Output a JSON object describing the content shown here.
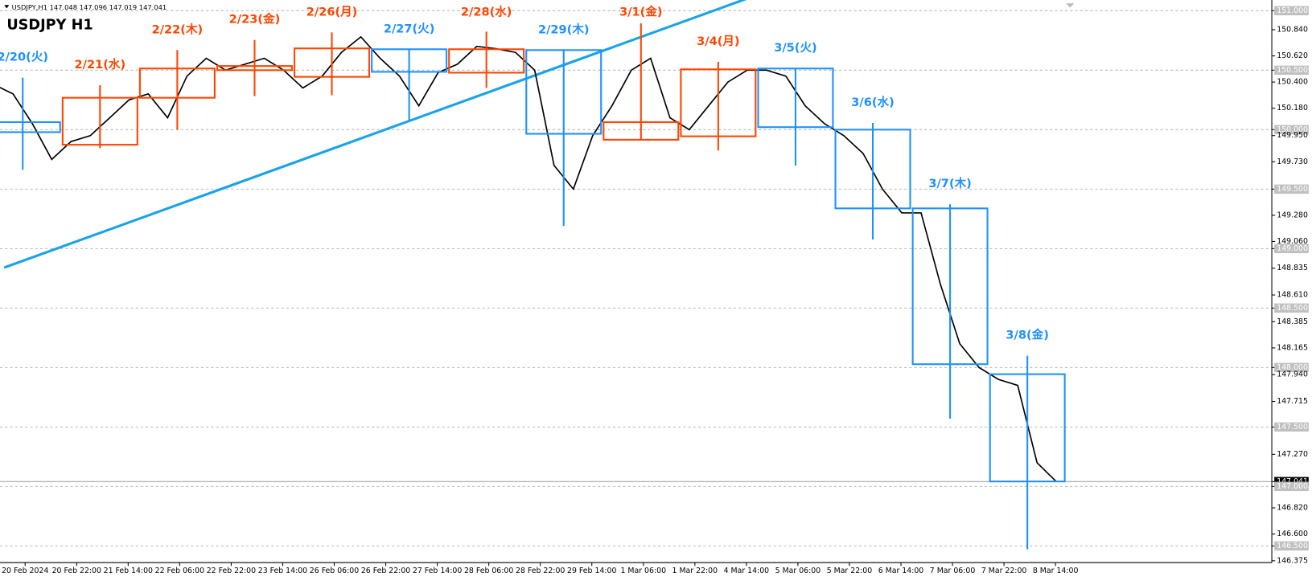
{
  "chart_data": {
    "type": "candlestick",
    "title": "USDJPY H1",
    "subtitle": "USDJPY,H1 147.048 147.096 147.019 147.041",
    "categories": [
      "2/20(火)",
      "2/21(水)",
      "2/22(木)",
      "2/23(金)",
      "2/26(月)",
      "2/27(火)",
      "2/28(水)",
      "2/29(木)",
      "3/1(金)",
      "3/4(月)",
      "3/5(火)",
      "3/6(水)",
      "3/7(木)",
      "3/8(金)"
    ],
    "colors": [
      "#1e90ff",
      "#ff4500",
      "#ff4500",
      "#ff4500",
      "#ff4500",
      "#1e90ff",
      "#ff4500",
      "#1e90ff",
      "#ff4500",
      "#ff4500",
      "#1e90ff",
      "#1e90ff",
      "#1e90ff",
      "#1e90ff"
    ],
    "open": [
      150.063,
      149.873,
      150.268,
      150.5,
      150.444,
      150.676,
      150.479,
      150.669,
      149.915,
      149.944,
      150.514,
      150.0,
      149.338,
      147.944
    ],
    "high": [
      150.437,
      150.373,
      150.669,
      150.754,
      150.817,
      150.676,
      150.824,
      150.669,
      150.894,
      150.57,
      150.514,
      150.056,
      149.373,
      148.099
    ],
    "low": [
      149.662,
      149.845,
      150.0,
      150.282,
      150.289,
      150.07,
      150.352,
      149.19,
      149.915,
      149.824,
      149.697,
      149.077,
      147.57,
      146.472
    ],
    "close": [
      149.979,
      150.268,
      150.514,
      150.535,
      150.683,
      150.486,
      150.676,
      149.965,
      150.063,
      150.507,
      150.021,
      149.338,
      148.028,
      147.042
    ],
    "price_path": [
      150.38,
      150.3,
      150.05,
      149.75,
      149.9,
      149.95,
      150.1,
      150.25,
      150.3,
      150.1,
      150.45,
      150.6,
      150.5,
      150.55,
      150.6,
      150.5,
      150.35,
      150.45,
      150.65,
      150.78,
      150.6,
      150.45,
      150.2,
      150.48,
      150.55,
      150.7,
      150.68,
      150.65,
      150.5,
      149.7,
      149.5,
      149.95,
      150.2,
      150.5,
      150.6,
      150.1,
      150.0,
      150.2,
      150.4,
      150.5,
      150.5,
      150.45,
      150.2,
      150.05,
      149.95,
      149.8,
      149.5,
      149.3,
      149.3,
      148.7,
      148.2,
      148.0,
      147.9,
      147.85,
      147.2,
      147.04
    ],
    "price_color": "#000000",
    "trendline": {
      "color": "#1aa3e8",
      "values": [
        148.84,
        152.7
      ]
    },
    "current_price": 147.041,
    "x_labels": [
      "20 Feb 2024",
      "20 Feb 22:00",
      "21 Feb 14:00",
      "22 Feb 06:00",
      "22 Feb 22:00",
      "23 Feb 14:00",
      "26 Feb 06:00",
      "26 Feb 22:00",
      "27 Feb 14:00",
      "28 Feb 06:00",
      "28 Feb 22:00",
      "29 Feb 14:00",
      "1 Mar 06:00",
      "1 Mar 22:00",
      "4 Mar 14:00",
      "5 Mar 06:00",
      "5 Mar 22:00",
      "6 Mar 14:00",
      "7 Mar 06:00",
      "7 Mar 22:00",
      "8 Mar 14:00"
    ],
    "ylim": [
      146.36,
      151.09
    ],
    "grid_levels": [
      151,
      150.5,
      150,
      149.5,
      149,
      148.5,
      148,
      147.5,
      147,
      146.5
    ],
    "yticks": [
      {
        "value": 151,
        "label": "151.000"
      },
      {
        "value": 150.84,
        "label": "150.840"
      },
      {
        "value": 150.62,
        "label": "150.620"
      },
      {
        "value": 150.5,
        "label": "150.500"
      },
      {
        "value": 150.4,
        "label": "150.400"
      },
      {
        "value": 150.18,
        "label": "150.180"
      },
      {
        "value": 150,
        "label": "150.000"
      },
      {
        "value": 149.95,
        "label": "149.950"
      },
      {
        "value": 149.73,
        "label": "149.730"
      },
      {
        "value": 149.5,
        "label": "149.500"
      },
      {
        "value": 149.28,
        "label": "149.280"
      },
      {
        "value": 149.06,
        "label": "149.060"
      },
      {
        "value": 149,
        "label": "149.000"
      },
      {
        "value": 148.835,
        "label": "148.835"
      },
      {
        "value": 148.61,
        "label": "148.610"
      },
      {
        "value": 148.5,
        "label": "148.500"
      },
      {
        "value": 148.385,
        "label": "148.385"
      },
      {
        "value": 148.165,
        "label": "148.165"
      },
      {
        "value": 148,
        "label": "148.000"
      },
      {
        "value": 147.94,
        "label": "147.940"
      },
      {
        "value": 147.715,
        "label": "147.715"
      },
      {
        "value": 147.5,
        "label": "147.500"
      },
      {
        "value": 147.27,
        "label": "147.270"
      },
      {
        "value": 147.041,
        "label": "147.041"
      },
      {
        "value": 147,
        "label": "147.000"
      },
      {
        "value": 146.82,
        "label": "146.820"
      },
      {
        "value": 146.6,
        "label": "146.600"
      },
      {
        "value": 146.5,
        "label": "146.500"
      },
      {
        "value": 146.375,
        "label": "146.375"
      }
    ]
  }
}
